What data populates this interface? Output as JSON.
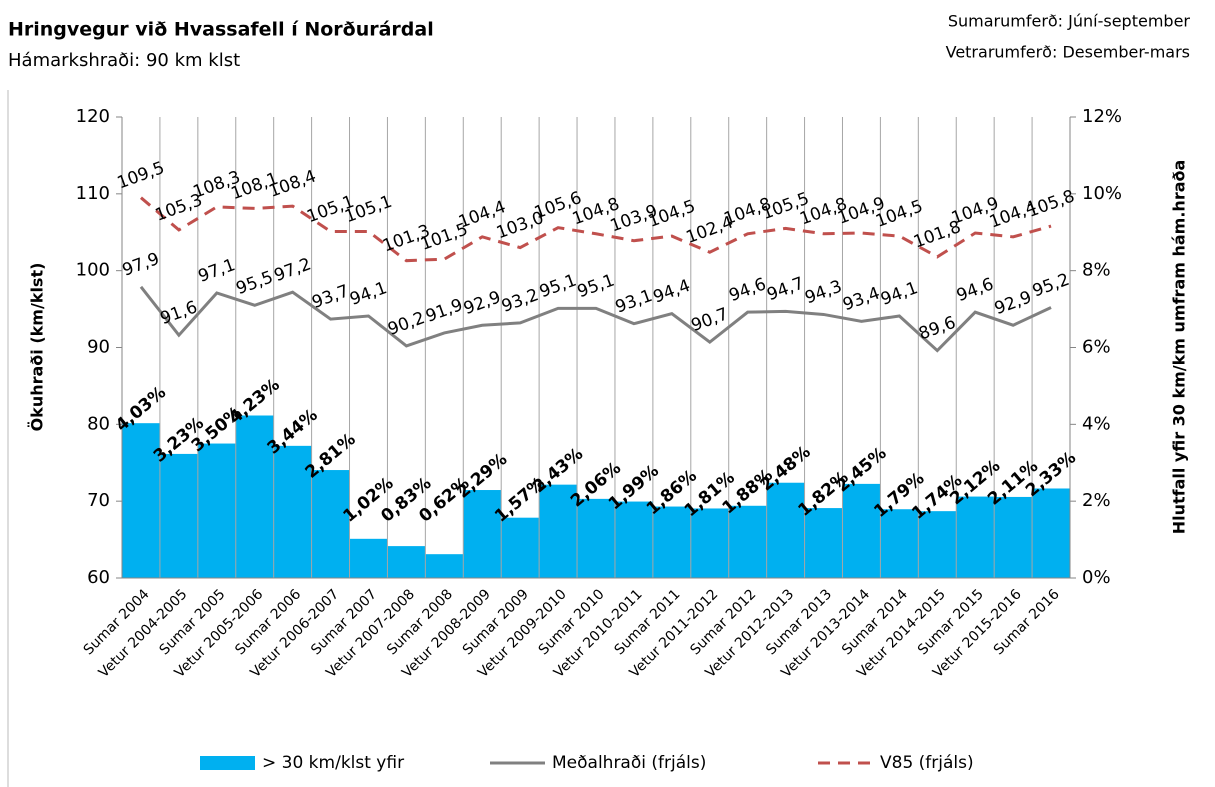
{
  "chart_data": {
    "type": "combo",
    "title": "Hringvegur við Hvassafell í Norðurárdal",
    "subtitle": "Hámarkshraði: 90 km klst",
    "annotations": [
      "Sumarumferð:  Júní-september",
      "Vetrarumferð:  Desember-mars"
    ],
    "ylabel": "Ökuhraði (km/klst)",
    "y2label": "Hlutfall yfir 30 km/km umfram hám.hraða",
    "categories": [
      "Sumar 2004",
      "Vetur 2004-2005",
      "Sumar 2005",
      "Vetur 2005-2006",
      "Sumar 2006",
      "Vetur 2006-2007",
      "Sumar 2007",
      "Vetur 2007-2008",
      "Sumar 2008",
      "Vetur 2008-2009",
      "Sumar 2009",
      "Vetur 2009-2010",
      "Sumar 2010",
      "Vetur 2010-2011",
      "Sumar 2011",
      "Vetur 2011-2012",
      "Sumar 2012",
      "Vetur 2012-2013",
      "Sumar 2013",
      "Vetur 2013-2014",
      "Sumar 2014",
      "Vetur 2014-2015",
      "Sumar 2015",
      "Vetur 2015-2016",
      "Sumar 2016"
    ],
    "ylim": [
      60,
      120
    ],
    "yticks": [
      60,
      70,
      80,
      90,
      100,
      110,
      120
    ],
    "y2lim": [
      0,
      12
    ],
    "y2ticks": [
      {
        "value": 0,
        "label": "0%"
      },
      {
        "value": 2,
        "label": "2%"
      },
      {
        "value": 4,
        "label": "4%"
      },
      {
        "value": 6,
        "label": "6%"
      },
      {
        "value": 8,
        "label": "8%"
      },
      {
        "value": 10,
        "label": "10%"
      },
      {
        "value": 12,
        "label": "12%"
      }
    ],
    "series": [
      {
        "name": "> 30 km/klst yfir",
        "type": "bar",
        "axis": "y2",
        "color": "#00b0f0",
        "values": [
          4.03,
          3.23,
          3.5,
          4.23,
          3.44,
          2.81,
          1.02,
          0.83,
          0.62,
          2.29,
          1.57,
          2.43,
          2.06,
          1.99,
          1.86,
          1.81,
          1.88,
          2.48,
          1.82,
          2.45,
          1.79,
          1.74,
          2.12,
          2.11,
          2.33
        ],
        "value_labels": [
          "4,03%",
          "3,23%",
          "3,50%",
          "4,23%",
          "3,44%",
          "2,81%",
          "1,02%",
          "0,83%",
          "0,62%",
          "2,29%",
          "1,57%",
          "2,43%",
          "2,06%",
          "1,99%",
          "1,86%",
          "1,81%",
          "1,88%",
          "2,48%",
          "1,82%",
          "2,45%",
          "1,79%",
          "1,74%",
          "2,12%",
          "2,11%",
          "2,33%"
        ]
      },
      {
        "name": "Meðalhraði (frjáls)",
        "type": "line",
        "color": "#808080",
        "dashed": false,
        "values": [
          97.9,
          91.6,
          97.1,
          95.5,
          97.2,
          93.7,
          94.1,
          90.2,
          91.9,
          92.9,
          93.2,
          95.1,
          95.1,
          93.1,
          94.4,
          90.7,
          94.6,
          94.7,
          94.3,
          93.4,
          94.1,
          89.6,
          94.6,
          92.9,
          95.2
        ],
        "value_labels": [
          "97,9",
          "91,6",
          "97,1",
          "95,5",
          "97,2",
          "93,7",
          "94,1",
          "90,2",
          "91,9",
          "92,9",
          "93,2",
          "95,1",
          "95,1",
          "93,1",
          "94,4",
          "90,7",
          "94,6",
          "94,7",
          "94,3",
          "93,4",
          "94,1",
          "89,6",
          "94,6",
          "92,9",
          "95,2"
        ]
      },
      {
        "name": "V85 (frjáls)",
        "type": "line",
        "color": "#c0504d",
        "dashed": true,
        "values": [
          109.5,
          105.3,
          108.3,
          108.1,
          108.4,
          105.1,
          105.1,
          101.3,
          101.5,
          104.4,
          103.0,
          105.6,
          104.8,
          103.9,
          104.5,
          102.4,
          104.8,
          105.5,
          104.8,
          104.9,
          104.5,
          101.8,
          104.9,
          104.4,
          105.8
        ],
        "value_labels": [
          "109,5",
          "105,3",
          "108,3",
          "108,1",
          "108,4",
          "105,1",
          "105,1",
          "101,3",
          "101,5",
          "104,4",
          "103,0",
          "105,6",
          "104,8",
          "103,9",
          "104,5",
          "102,4",
          "104,8",
          "105,5",
          "104,8",
          "104,9",
          "104,5",
          "101,8",
          "104,9",
          "104,4",
          "105,8"
        ]
      }
    ]
  }
}
